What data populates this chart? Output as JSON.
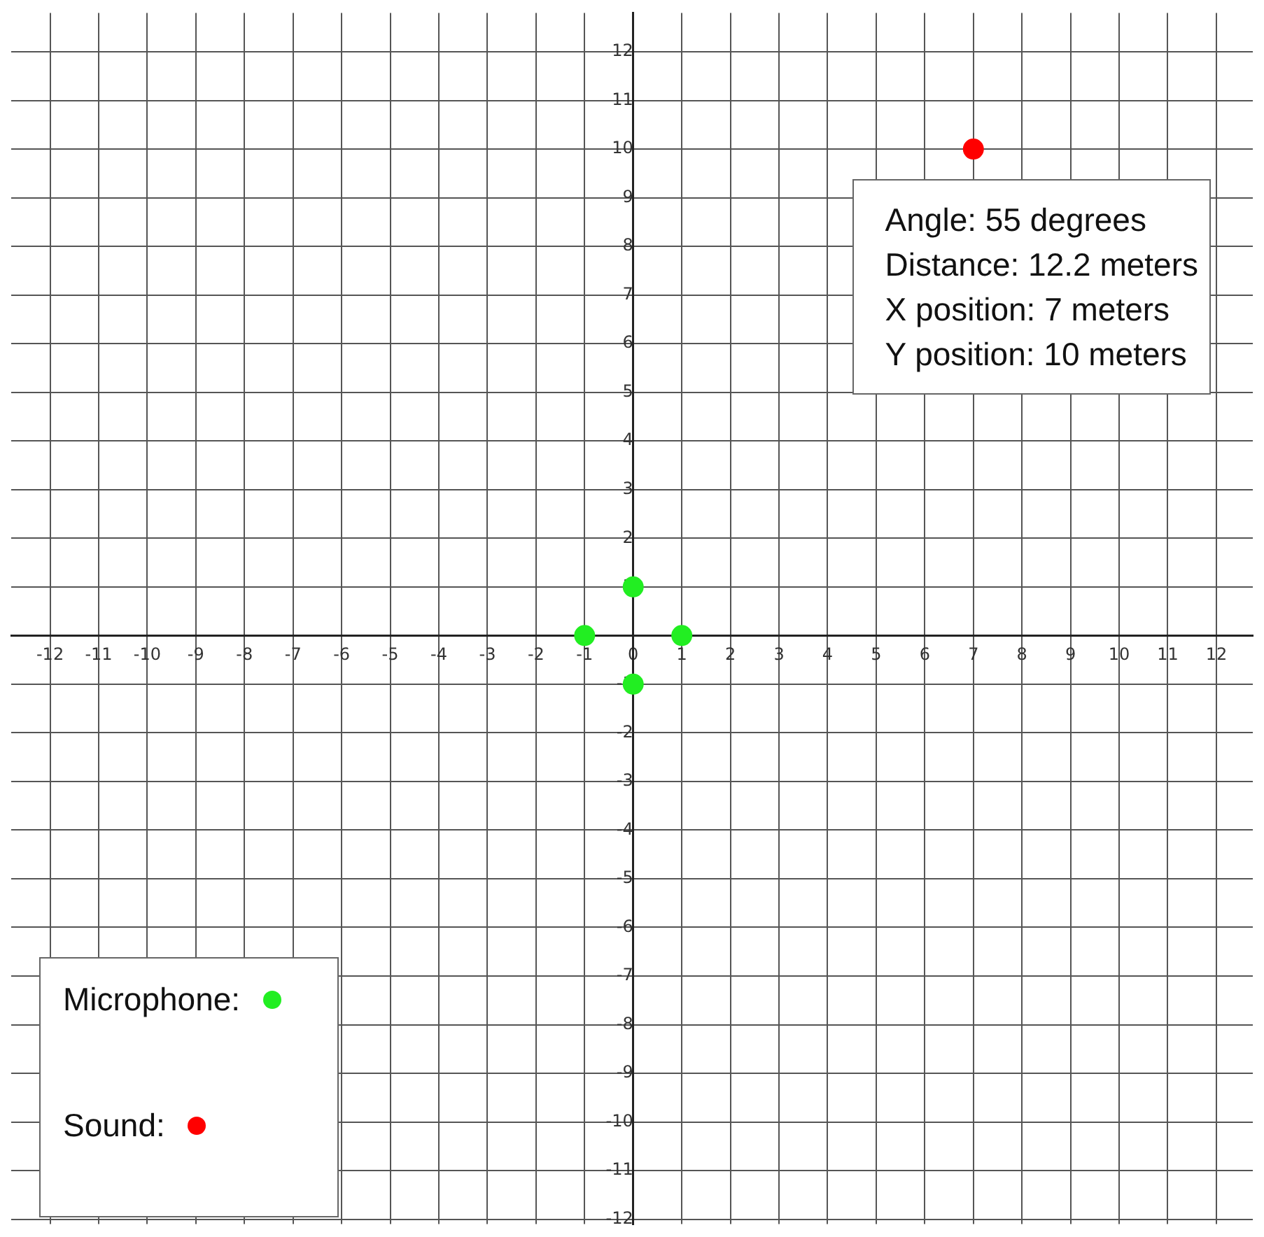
{
  "chart_data": {
    "type": "scatter",
    "series": [
      {
        "name": "Microphone:",
        "color": "#22ee22",
        "x": [
          -1,
          0,
          1,
          0
        ],
        "values": [
          0,
          1,
          0,
          -1
        ]
      },
      {
        "name": "Sound:",
        "color": "#ff0000",
        "x": [
          7
        ],
        "values": [
          10
        ]
      }
    ],
    "xlim": [
      -12.8,
      12.75
    ],
    "ylim": [
      -12.1,
      12.8
    ],
    "xticks": [
      -12,
      -11,
      -10,
      -9,
      -8,
      -7,
      -6,
      -5,
      -4,
      -3,
      -2,
      -1,
      0,
      1,
      2,
      3,
      4,
      5,
      6,
      7,
      8,
      9,
      10,
      11,
      12
    ],
    "yticks": [
      -12,
      -11,
      -10,
      -9,
      -8,
      -7,
      -6,
      -5,
      -4,
      -3,
      -2,
      -1,
      {
        "value": 0,
        "label": null
      },
      1,
      2,
      3,
      4,
      5,
      6,
      7,
      8,
      9,
      10,
      11,
      12
    ],
    "annotations": [
      "Angle: 55 degrees",
      "Distance: 12.2 meters",
      "X position: 7 meters",
      "Y position: 10 meters"
    ],
    "grid": true,
    "legend": "bottom left",
    "marker": "circle"
  }
}
